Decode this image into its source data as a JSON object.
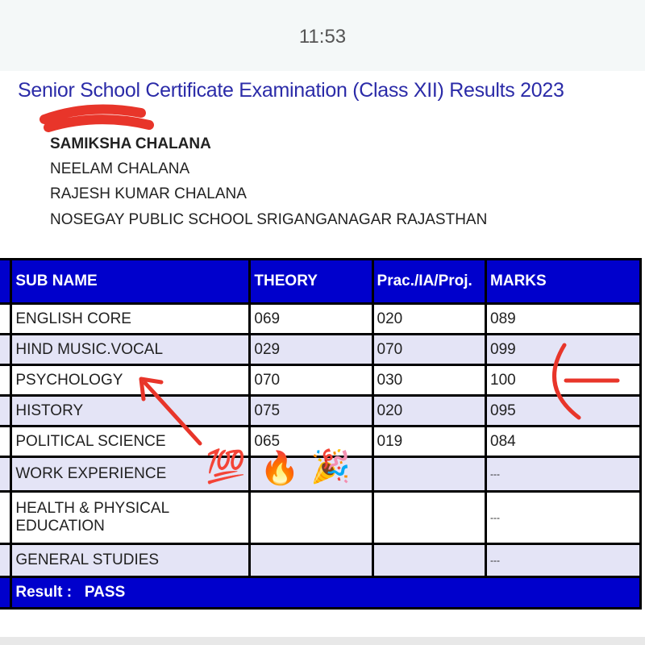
{
  "status_bar": {
    "time": "11:53"
  },
  "page": {
    "title": "Senior School Certificate Examination (Class XII) Results 2023",
    "candidate_name": "SAMIKSHA CHALANA",
    "mother_name": "NEELAM CHALANA",
    "father_name": "RAJESH KUMAR CHALANA",
    "school": "NOSEGAY PUBLIC SCHOOL SRIGANGANAGAR RAJASTHAN"
  },
  "table": {
    "headers": [
      "SUB NAME",
      "THEORY",
      "Prac./IA/Proj.",
      "MARKS"
    ],
    "rows": [
      [
        "ENGLISH CORE",
        "069",
        "020",
        "089"
      ],
      [
        "HIND MUSIC.VOCAL",
        "029",
        "070",
        "099"
      ],
      [
        "PSYCHOLOGY",
        "070",
        "030",
        "100"
      ],
      [
        "HISTORY",
        "075",
        "020",
        "095"
      ],
      [
        "POLITICAL SCIENCE",
        "065",
        "019",
        "084"
      ],
      [
        "WORK EXPERIENCE",
        "",
        "",
        "---"
      ],
      [
        "HEALTH & PHYSICAL EDUCATION",
        "",
        "",
        "---"
      ],
      [
        "GENERAL STUDIES",
        "",
        "",
        "---"
      ]
    ],
    "result_label": "Result :",
    "result_value": "PASS"
  },
  "stickers": [
    "💯",
    "🔥",
    "🎉"
  ],
  "colors": {
    "header_blue": "#0000cc",
    "title_blue": "#2b2ba8",
    "annotation_red": "#e8352a"
  }
}
